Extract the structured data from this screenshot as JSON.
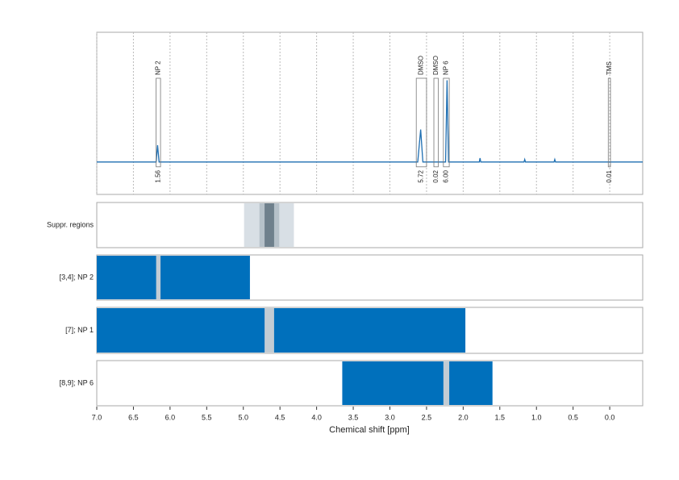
{
  "chart_data": {
    "type": "nmr",
    "xlabel": "Chemical shift [ppm]",
    "xlim": [
      7.0,
      -0.45
    ],
    "xticks": [
      {
        "value": 7,
        "label": "7.0"
      },
      {
        "value": 6.5,
        "label": "6.5"
      },
      {
        "value": 6,
        "label": "6.0"
      },
      {
        "value": 5.5,
        "label": "5.5"
      },
      {
        "value": 5,
        "label": "5.0"
      },
      {
        "value": 4.5,
        "label": "4.5"
      },
      {
        "value": 4,
        "label": "4.0"
      },
      {
        "value": 3.5,
        "label": "3.5"
      },
      {
        "value": 3,
        "label": "3.0"
      },
      {
        "value": 2.5,
        "label": "2.5"
      },
      {
        "value": 2,
        "label": "2.0"
      },
      {
        "value": 1.5,
        "label": "1.5"
      },
      {
        "value": 1,
        "label": "1.0"
      },
      {
        "value": 0.5,
        "label": "0.5"
      },
      {
        "value": 0,
        "label": "0.0"
      }
    ],
    "grid": true,
    "ylim": [
      -0.25,
      1.0
    ],
    "spectrum": {
      "color": "#1f6fb2",
      "x": [
        7.0,
        6.19,
        6.17,
        6.15,
        2.62,
        2.58,
        2.55,
        2.24,
        2.22,
        2.2,
        1.78,
        1.77,
        1.76,
        1.17,
        1.16,
        1.15,
        0.76,
        0.75,
        0.74,
        -0.45
      ],
      "values": [
        0,
        0,
        0.13,
        0,
        0,
        0.25,
        0,
        0,
        0.63,
        0,
        0,
        0.03,
        0,
        0,
        0.02,
        0,
        0,
        0.02,
        0,
        0
      ]
    },
    "integrals": {
      "labels": [
        "NP 2",
        "DMSO",
        "DMSO",
        "NP 6",
        "TMS"
      ],
      "starts": [
        6.19,
        2.64,
        2.4,
        2.27,
        0.02
      ],
      "ends": [
        6.13,
        2.5,
        2.34,
        2.19,
        -0.01
      ],
      "values": [
        1.56,
        5.72,
        0.02,
        6.0,
        0.01
      ],
      "value_labels": [
        "1.56",
        "5.72",
        "0.02",
        "6.00",
        "0.01"
      ],
      "color": "#e8262b"
    },
    "tracks": [
      {
        "name": "Suppr. regions",
        "bands": [
          {
            "from": 4.99,
            "to": 4.31,
            "color": "#d8dfe5"
          },
          {
            "from": 4.78,
            "to": 4.51,
            "color": "#b6c1c9"
          },
          {
            "from": 4.71,
            "to": 4.58,
            "color": "#6f808c"
          }
        ]
      },
      {
        "name": "[3,4]; NP 2",
        "bands": [
          {
            "from": 7.0,
            "to": 4.91,
            "color": "#0070bc"
          },
          {
            "from": 6.19,
            "to": 6.13,
            "color": "#c2ccd4"
          }
        ]
      },
      {
        "name": "[7]; NP 1",
        "bands": [
          {
            "from": 7.0,
            "to": 1.97,
            "color": "#0070bc"
          },
          {
            "from": 4.71,
            "to": 4.58,
            "color": "#c2ccd4"
          }
        ]
      },
      {
        "name": "[8,9]; NP 6",
        "bands": [
          {
            "from": 3.65,
            "to": 1.6,
            "color": "#0070bc"
          },
          {
            "from": 2.27,
            "to": 2.19,
            "color": "#c2ccd4"
          }
        ]
      }
    ]
  }
}
